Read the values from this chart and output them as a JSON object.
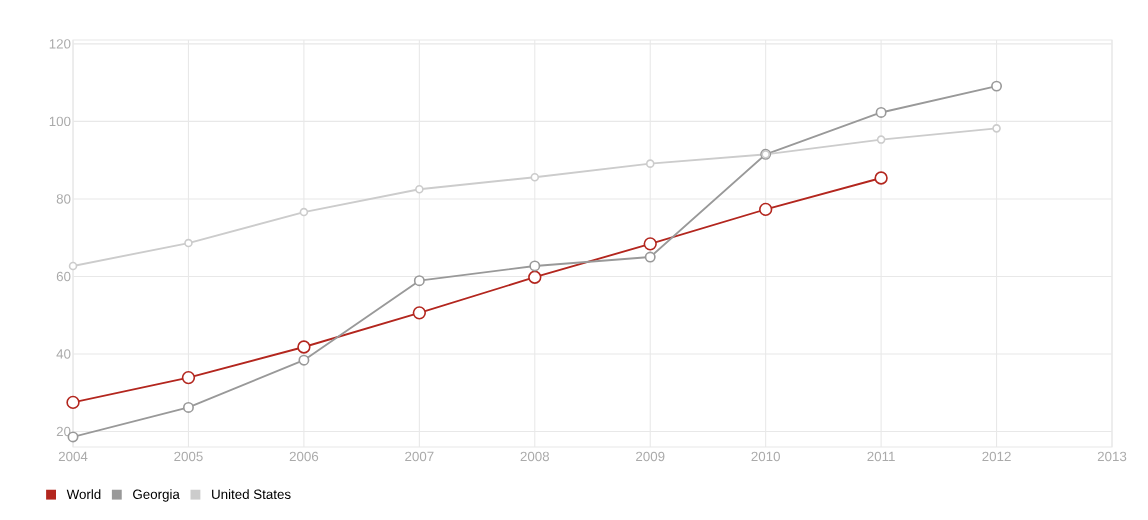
{
  "chart_data": {
    "type": "line",
    "x": [
      2004,
      2005,
      2006,
      2007,
      2008,
      2009,
      2010,
      2011,
      2012
    ],
    "series": [
      {
        "name": "World",
        "color": "#b3261e",
        "values": [
          27.5,
          33.9,
          41.8,
          50.6,
          59.8,
          68.4,
          77.3,
          85.4,
          null
        ]
      },
      {
        "name": "Georgia",
        "color": "#999999",
        "values": [
          18.6,
          26.2,
          38.4,
          58.9,
          62.7,
          65.0,
          91.5,
          102.3,
          109.1
        ]
      },
      {
        "name": "United States",
        "color": "#cccccc",
        "values": [
          62.7,
          68.6,
          76.6,
          82.5,
          85.6,
          89.1,
          91.5,
          95.3,
          98.2
        ]
      }
    ],
    "xlim": [
      2004,
      2013
    ],
    "xticks": [
      2004,
      2005,
      2006,
      2007,
      2008,
      2009,
      2010,
      2011,
      2012,
      2013
    ],
    "ylim": [
      16,
      121
    ],
    "yticks": [
      20,
      40,
      60,
      80,
      100,
      120
    ],
    "grid": true,
    "legend": "bottom left",
    "marker": "circle",
    "line_style": "solid"
  }
}
